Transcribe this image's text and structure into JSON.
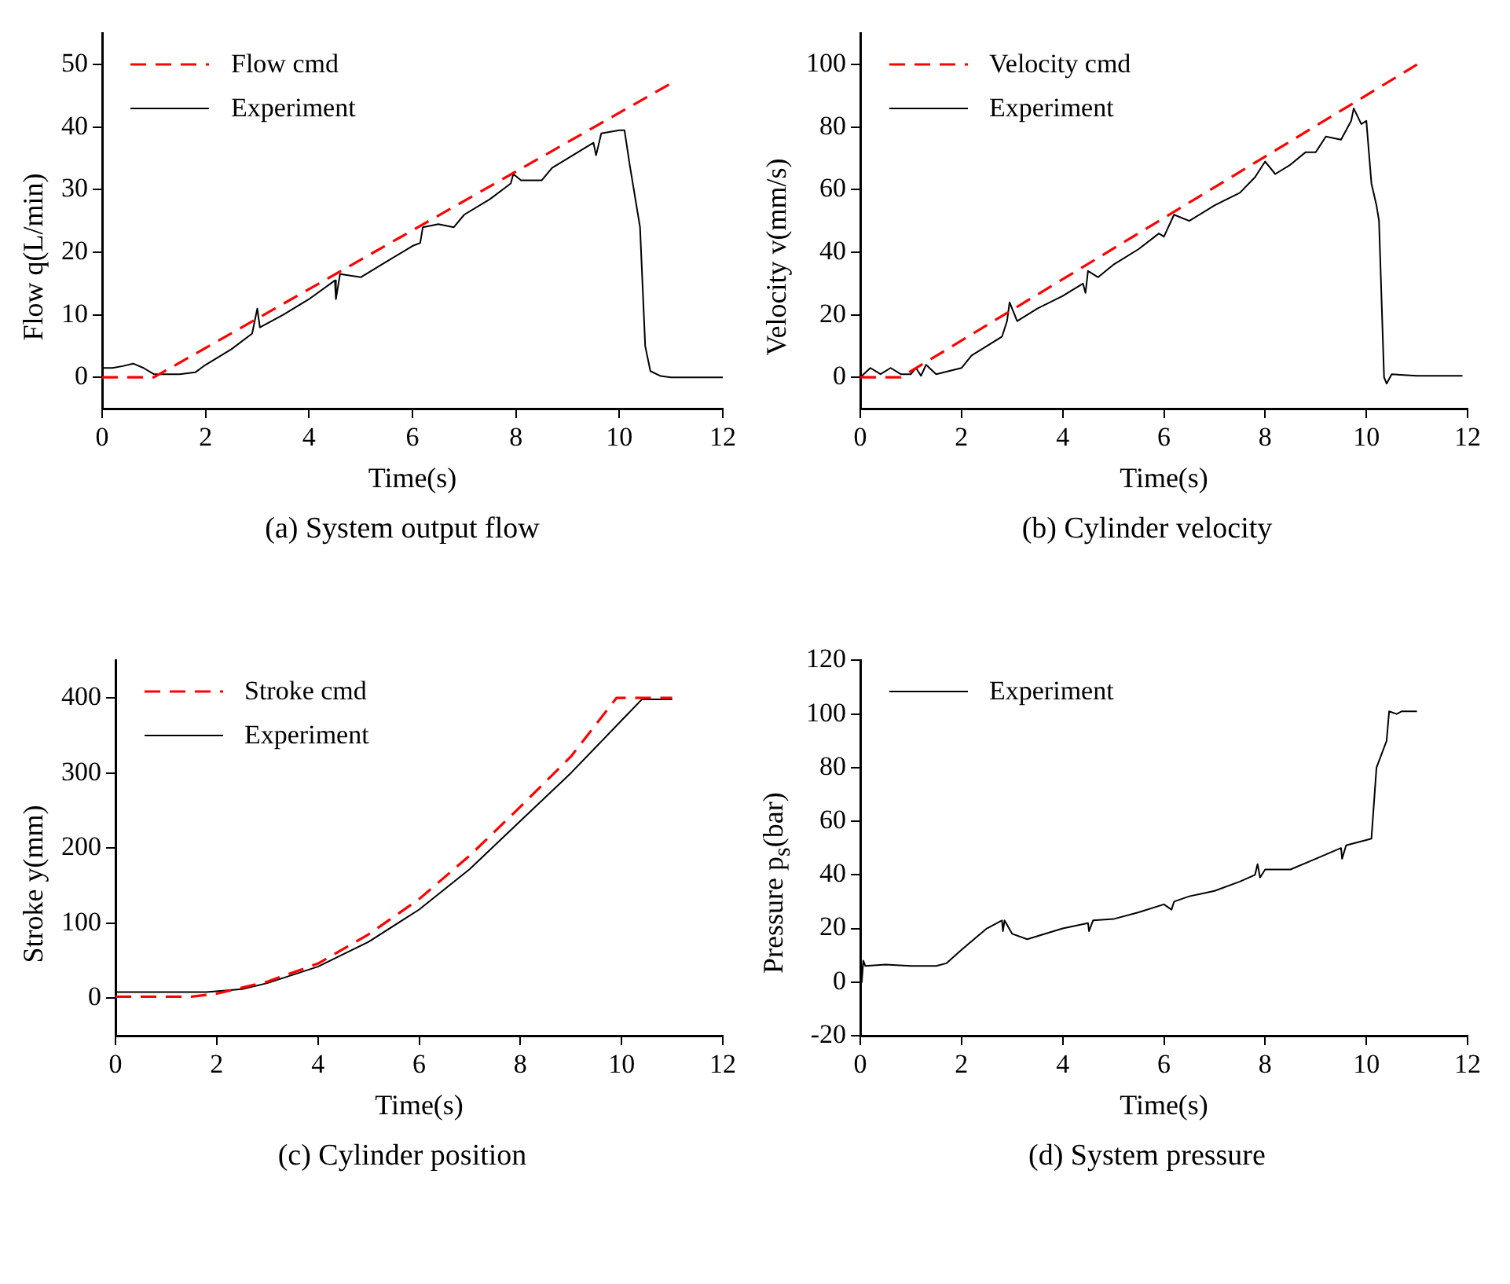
{
  "chart_data": [
    {
      "type": "line",
      "title": "(a) System output flow",
      "xlabel": "Time(s)",
      "ylabel": "Flow q(L/min)",
      "xlim": [
        0,
        12
      ],
      "xticks": [
        0,
        2,
        4,
        6,
        8,
        10,
        12
      ],
      "ylim": [
        -5,
        55
      ],
      "yticks": [
        0,
        10,
        20,
        30,
        40,
        50
      ],
      "grid": false,
      "legend": "top left",
      "marker": "none",
      "series": [
        {
          "name": "Flow cmd",
          "color": "#ff0000",
          "line_style": "dashed",
          "x": [
            0,
            1,
            11
          ],
          "values": [
            0,
            0,
            47
          ]
        },
        {
          "name": "Experiment",
          "color": "#000000",
          "line_style": "solid",
          "x": [
            0,
            0.2,
            0.4,
            0.6,
            0.8,
            1.0,
            1.5,
            1.8,
            2.0,
            2.5,
            2.9,
            3.0,
            3.05,
            3.5,
            4,
            4.5,
            4.52,
            4.6,
            5,
            5.5,
            6,
            6.15,
            6.2,
            6.5,
            6.8,
            7,
            7.5,
            7.9,
            7.95,
            8.1,
            8.5,
            8.7,
            9,
            9.5,
            9.55,
            9.65,
            10,
            10.1,
            10.2,
            10.4,
            10.5,
            10.6,
            10.8,
            11,
            12
          ],
          "values": [
            1.5,
            1.5,
            1.8,
            2.2,
            1.5,
            0.5,
            0.5,
            0.8,
            2,
            4.5,
            7,
            11,
            8,
            10,
            12.5,
            15.5,
            12.5,
            16.5,
            16,
            18.5,
            21,
            21.5,
            24,
            24.5,
            24,
            26,
            28.5,
            31,
            32.5,
            31.5,
            31.5,
            33.5,
            35,
            37.5,
            35.5,
            39,
            39.5,
            39.5,
            34,
            24,
            5,
            1,
            0.2,
            0,
            0
          ]
        }
      ]
    },
    {
      "type": "line",
      "title": "(b) Cylinder velocity",
      "xlabel": "Time(s)",
      "ylabel": "Velocity v(mm/s)",
      "xlim": [
        0,
        12
      ],
      "xticks": [
        0,
        2,
        4,
        6,
        8,
        10,
        12
      ],
      "ylim": [
        -10,
        110
      ],
      "yticks": [
        0,
        20,
        40,
        60,
        80,
        100
      ],
      "grid": false,
      "legend": "top left",
      "marker": "none",
      "series": [
        {
          "name": "Velocity cmd",
          "color": "#ff0000",
          "line_style": "dashed",
          "x": [
            0,
            0.8,
            11
          ],
          "values": [
            0,
            0,
            100
          ]
        },
        {
          "name": "Experiment",
          "color": "#000000",
          "line_style": "solid",
          "x": [
            0,
            0.2,
            0.4,
            0.6,
            0.8,
            1,
            1.1,
            1.2,
            1.3,
            1.5,
            2,
            2.2,
            2.5,
            2.8,
            2.9,
            2.95,
            3.1,
            3.5,
            4,
            4.4,
            4.45,
            4.5,
            4.7,
            5,
            5.5,
            5.9,
            6,
            6.2,
            6.5,
            7,
            7.5,
            7.8,
            8,
            8.2,
            8.5,
            8.8,
            9,
            9.2,
            9.5,
            9.7,
            9.75,
            9.9,
            10,
            10.1,
            10.2,
            10.25,
            10.35,
            10.4,
            10.5,
            11,
            11.9
          ],
          "values": [
            0,
            3,
            1,
            3,
            1,
            1,
            3,
            0.5,
            4,
            1,
            3,
            7,
            10,
            13,
            18,
            24,
            18,
            22,
            26,
            30,
            27,
            34,
            32,
            36,
            41,
            46,
            45,
            52,
            50,
            55,
            59,
            64,
            69,
            65,
            68,
            72,
            72,
            77,
            76,
            82,
            86,
            81,
            82,
            62,
            55,
            50,
            0,
            -2,
            1,
            0.5,
            0.5
          ]
        }
      ]
    },
    {
      "type": "line",
      "title": "(c) Cylinder position",
      "xlabel": "Time(s)",
      "ylabel": "Stroke y(mm)",
      "xlim": [
        0,
        12
      ],
      "xticks": [
        0,
        2,
        4,
        6,
        8,
        10,
        12
      ],
      "ylim": [
        -50,
        450
      ],
      "yticks": [
        0,
        100,
        200,
        300,
        400
      ],
      "grid": false,
      "legend": "top left",
      "marker": "none",
      "series": [
        {
          "name": "Stroke cmd",
          "color": "#ff0000",
          "line_style": "dashed",
          "x": [
            0,
            1.5,
            2,
            3,
            4,
            5,
            6,
            7,
            8,
            9,
            9.9,
            11
          ],
          "values": [
            2,
            2,
            6,
            22,
            46,
            85,
            132,
            190,
            255,
            322,
            400,
            400
          ]
        },
        {
          "name": "Experiment",
          "color": "#000000",
          "line_style": "solid",
          "x": [
            0,
            1.8,
            2.5,
            3,
            4,
            5,
            6,
            7,
            8,
            9,
            9.5,
            10,
            10.4,
            11
          ],
          "values": [
            8,
            8,
            12,
            20,
            42,
            75,
            118,
            172,
            236,
            300,
            335,
            370,
            398,
            398
          ]
        }
      ]
    },
    {
      "type": "line",
      "title": "(d) System pressure",
      "xlabel": "Time(s)",
      "ylabel": "Pressure p$_{s}$(bar)",
      "xlim": [
        0,
        12
      ],
      "xticks": [
        0,
        2,
        4,
        6,
        8,
        10,
        12
      ],
      "ylim": [
        -20,
        120
      ],
      "yticks": [
        -20,
        0,
        20,
        40,
        60,
        80,
        100,
        120
      ],
      "grid": false,
      "legend": "top left",
      "marker": "none",
      "series": [
        {
          "name": "Experiment",
          "color": "#000000",
          "line_style": "solid",
          "x": [
            0,
            0.03,
            0.06,
            0.1,
            0.5,
            1,
            1.5,
            1.7,
            2,
            2.5,
            2.8,
            2.82,
            2.85,
            3,
            3.3,
            4,
            4.5,
            4.52,
            4.6,
            5,
            5.5,
            6,
            6.15,
            6.2,
            6.5,
            7,
            7.5,
            7.8,
            7.85,
            7.9,
            8,
            8.5,
            9,
            9.5,
            9.52,
            9.6,
            10,
            10.1,
            10.2,
            10.4,
            10.45,
            10.6,
            10.7,
            11
          ],
          "values": [
            17,
            0,
            8,
            6,
            6.5,
            6,
            6,
            7,
            12,
            20,
            23,
            19,
            23,
            18,
            16,
            20,
            22,
            19,
            23,
            23.5,
            26,
            29,
            27,
            30,
            32,
            34,
            37.5,
            40,
            44,
            39,
            42,
            42,
            46,
            50,
            46,
            51,
            53,
            53.5,
            80,
            90,
            101,
            100,
            101,
            101
          ]
        }
      ]
    }
  ]
}
